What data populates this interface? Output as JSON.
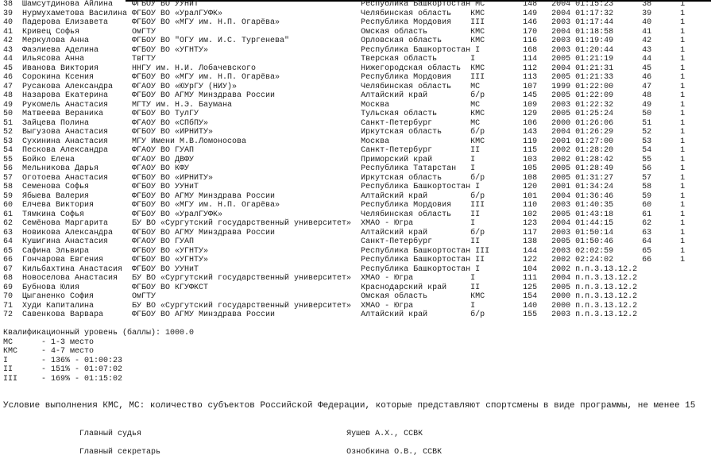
{
  "table": {
    "columns": [
      "№",
      "Фамилия Имя",
      "Организация",
      "Регион",
      "Разряд",
      "Номер",
      "Год",
      "Результат",
      "Место",
      "Очки"
    ],
    "rows": [
      {
        "num": "38",
        "name": "Шамсутдинова Айлина",
        "org": "ФГБОУ ВО УУНиТ",
        "region": "Республика Башкортостан",
        "rank": "МС",
        "bib": "148",
        "year": "2004",
        "result": "01:15:23",
        "place": "38",
        "points": "1"
      },
      {
        "num": "39",
        "name": "Нурмухаметова Василина",
        "org": "ФГБОУ ВО «УралГУФК»",
        "region": "Челябинская область",
        "rank": "КМС",
        "bib": "149",
        "year": "2004",
        "result": "01:17:32",
        "place": "39",
        "points": "1"
      },
      {
        "num": "40",
        "name": "Падерова Елизавета",
        "org": "ФГБОУ ВО «МГУ им. Н.П. Огарёва»",
        "region": "Республика Мордовия",
        "rank": "III",
        "bib": "146",
        "year": "2003",
        "result": "01:17:44",
        "place": "40",
        "points": "1"
      },
      {
        "num": "41",
        "name": "Кривец Софья",
        "org": "ОмГТУ",
        "region": "Омская область",
        "rank": "КМС",
        "bib": "170",
        "year": "2004",
        "result": "01:18:58",
        "place": "41",
        "points": "1"
      },
      {
        "num": "42",
        "name": "Меркулова Анна",
        "org": "ФГБОУ ВО \"ОГУ им. И.С. Тургенева\"",
        "region": "Орловская область",
        "rank": "КМС",
        "bib": "116",
        "year": "2003",
        "result": "01:19:49",
        "place": "42",
        "points": "1"
      },
      {
        "num": "43",
        "name": "Фаэлиева Аделина",
        "org": "ФГБОУ ВО «УГНТУ»",
        "region": "Республика Башкортостан",
        "rank": "I",
        "bib": "168",
        "year": "2003",
        "result": "01:20:44",
        "place": "43",
        "points": "1"
      },
      {
        "num": "44",
        "name": "Ильясова Анна",
        "org": "ТвГТУ",
        "region": "Тверская область",
        "rank": "I",
        "bib": "114",
        "year": "2005",
        "result": "01:21:19",
        "place": "44",
        "points": "1"
      },
      {
        "num": "45",
        "name": "Иванова Виктория",
        "org": "ННГУ им. Н.И. Лобачевского",
        "region": "Нижегородская область",
        "rank": "КМС",
        "bib": "112",
        "year": "2004",
        "result": "01:21:31",
        "place": "45",
        "points": "1"
      },
      {
        "num": "46",
        "name": "Сорокина Ксения",
        "org": "ФГБОУ ВО «МГУ им. Н.П. Огарёва»",
        "region": "Республика Мордовия",
        "rank": "III",
        "bib": "113",
        "year": "2005",
        "result": "01:21:33",
        "place": "46",
        "points": "1"
      },
      {
        "num": "47",
        "name": "Русакова Александра",
        "org": "ФГАОУ ВО «ЮУрГУ (НИУ)»",
        "region": "Челябинская область",
        "rank": "МС",
        "bib": "107",
        "year": "1999",
        "result": "01:22:00",
        "place": "47",
        "points": "1"
      },
      {
        "num": "48",
        "name": "Назарова Екатерина",
        "org": "ФГБОУ ВО АГМУ Минздрава России",
        "region": "Алтайский край",
        "rank": "б/р",
        "bib": "145",
        "year": "2005",
        "result": "01:22:09",
        "place": "48",
        "points": "1"
      },
      {
        "num": "49",
        "name": "Рукомель Анастасия",
        "org": "МГТУ им. Н.Э. Баумана",
        "region": "Москва",
        "rank": "МС",
        "bib": "109",
        "year": "2003",
        "result": "01:22:32",
        "place": "49",
        "points": "1"
      },
      {
        "num": "50",
        "name": "Матвеева Вераника",
        "org": "ФГБОУ ВО ТулГУ",
        "region": "Тульская область",
        "rank": "КМС",
        "bib": "129",
        "year": "2005",
        "result": "01:25:24",
        "place": "50",
        "points": "1"
      },
      {
        "num": "51",
        "name": "Зайцева Полина",
        "org": "ФГАОУ ВО «СПбПУ»",
        "region": "Санкт-Петербург",
        "rank": "МС",
        "bib": "106",
        "year": "2000",
        "result": "01:26:06",
        "place": "51",
        "points": "1"
      },
      {
        "num": "52",
        "name": "Выгузова Анастасия",
        "org": "ФГБОУ ВО «ИРНИТУ»",
        "region": "Иркутская область",
        "rank": "б/р",
        "bib": "143",
        "year": "2004",
        "result": "01:26:29",
        "place": "52",
        "points": "1"
      },
      {
        "num": "53",
        "name": "Сухинина Анастасия",
        "org": "МГУ Имени М.В.Ломоносова",
        "region": "Москва",
        "rank": "КМС",
        "bib": "119",
        "year": "2001",
        "result": "01:27:00",
        "place": "53",
        "points": "1"
      },
      {
        "num": "54",
        "name": "Пескова Александра",
        "org": "ФГАОУ ВО ГУАП",
        "region": "Санкт-Петербург",
        "rank": "II",
        "bib": "115",
        "year": "2002",
        "result": "01:28:20",
        "place": "54",
        "points": "1"
      },
      {
        "num": "55",
        "name": "Бойко Елена",
        "org": "ФГАОУ ВО ДВФУ",
        "region": "Приморский край",
        "rank": "I",
        "bib": "103",
        "year": "2002",
        "result": "01:28:42",
        "place": "55",
        "points": "1"
      },
      {
        "num": "56",
        "name": "Мельникова Дарья",
        "org": "ФГАОУ ВО КФУ",
        "region": "Республика Татарстан",
        "rank": "I",
        "bib": "105",
        "year": "2005",
        "result": "01:28:49",
        "place": "56",
        "points": "1"
      },
      {
        "num": "57",
        "name": "Оготоева Анастасия",
        "org": "ФГБОУ ВО «ИРНИТУ»",
        "region": "Иркутская область",
        "rank": "б/р",
        "bib": "108",
        "year": "2005",
        "result": "01:31:27",
        "place": "57",
        "points": "1"
      },
      {
        "num": "58",
        "name": "Семенова Софья",
        "org": "ФГБОУ ВО УУНиТ",
        "region": "Республика Башкортостан",
        "rank": "I",
        "bib": "120",
        "year": "2001",
        "result": "01:34:24",
        "place": "58",
        "points": "1"
      },
      {
        "num": "59",
        "name": "Ябыева Валерия",
        "org": "ФГБОУ ВО АГМУ Минздрава России",
        "region": "Алтайский край",
        "rank": "б/р",
        "bib": "101",
        "year": "2004",
        "result": "01:36:46",
        "place": "59",
        "points": "1"
      },
      {
        "num": "60",
        "name": "Елчева Виктория",
        "org": "ФГБОУ ВО «МГУ им. Н.П. Огарёва»",
        "region": "Республика Мордовия",
        "rank": "III",
        "bib": "110",
        "year": "2003",
        "result": "01:40:35",
        "place": "60",
        "points": "1"
      },
      {
        "num": "61",
        "name": "Тямкина Софья",
        "org": "ФГБОУ ВО «УралГУФК»",
        "region": "Челябинская область",
        "rank": "II",
        "bib": "102",
        "year": "2005",
        "result": "01:43:18",
        "place": "61",
        "points": "1"
      },
      {
        "num": "62",
        "name": "Семёнова Маргарита",
        "org": "БУ ВО «Сургутский государственный университет»",
        "region": "ХМАО - Югра",
        "rank": "I",
        "bib": "123",
        "year": "2004",
        "result": "01:44:15",
        "place": "62",
        "points": "1"
      },
      {
        "num": "63",
        "name": "Новикова Александра",
        "org": "ФГБОУ ВО АГМУ Минздрава России",
        "region": "Алтайский край",
        "rank": "б/р",
        "bib": "117",
        "year": "2003",
        "result": "01:50:14",
        "place": "63",
        "points": "1"
      },
      {
        "num": "64",
        "name": "Кушигина Анастасия",
        "org": "ФГАОУ ВО ГУАП",
        "region": "Санкт-Петербург",
        "rank": "II",
        "bib": "138",
        "year": "2005",
        "result": "01:50:46",
        "place": "64",
        "points": "1"
      },
      {
        "num": "65",
        "name": "Сафина Эльвира",
        "org": "ФГБОУ ВО «УГНТУ»",
        "region": "Республика Башкортостан",
        "rank": "III",
        "bib": "144",
        "year": "2003",
        "result": "02:02:59",
        "place": "65",
        "points": "1"
      },
      {
        "num": "66",
        "name": "Гончарова Евгения",
        "org": "ФГБОУ ВО «УГНТУ»",
        "region": "Республика Башкортостан",
        "rank": "II",
        "bib": "122",
        "year": "2002",
        "result": "02:24:02",
        "place": "66",
        "points": "1"
      },
      {
        "num": "67",
        "name": "Кильбахтина Анастасия",
        "org": "ФГБОУ ВО УУНиТ",
        "region": "Республика Башкортостан",
        "rank": "I",
        "bib": "104",
        "year": "2002",
        "result": "п.п.3.13.12.2",
        "place": "",
        "points": ""
      },
      {
        "num": "68",
        "name": "Новоселова Анастасия",
        "org": "БУ ВО «Сургутский государственный университет»",
        "region": "ХМАО - Югра",
        "rank": "I",
        "bib": "111",
        "year": "2004",
        "result": "п.п.3.13.12.2",
        "place": "",
        "points": ""
      },
      {
        "num": "69",
        "name": "Бубнова Юлия",
        "org": "ФГБОУ ВО КГУФКСТ",
        "region": "Краснодарский край",
        "rank": "II",
        "bib": "125",
        "year": "2005",
        "result": "п.п.3.13.12.2",
        "place": "",
        "points": ""
      },
      {
        "num": "70",
        "name": "Цыганенко София",
        "org": "ОмГТУ",
        "region": "Омская область",
        "rank": "КМС",
        "bib": "154",
        "year": "2000",
        "result": "п.п.3.13.12.2",
        "place": "",
        "points": ""
      },
      {
        "num": "71",
        "name": "Худи Капиталина",
        "org": "БУ ВО «Сургутский государственный университет»",
        "region": "ХМАО - Югра",
        "rank": "I",
        "bib": "140",
        "year": "2000",
        "result": "п.п.3.13.12.2",
        "place": "",
        "points": ""
      },
      {
        "num": "72",
        "name": "Савенкова Варвара",
        "org": "ФГБОУ ВО АГМУ Минздрава России",
        "region": "Алтайский край",
        "rank": "б/р",
        "bib": "155",
        "year": "2003",
        "result": "п.п.3.13.12.2",
        "place": "",
        "points": ""
      }
    ]
  },
  "qualification": {
    "title": "Квалификационный уровень (баллы):",
    "value": "1000.0",
    "levels": [
      {
        "label": "МС",
        "desc": "- 1-3 место"
      },
      {
        "label": "КМС",
        "desc": "- 4-7 место"
      },
      {
        "label": "I",
        "desc": "- 136% - 01:00:23"
      },
      {
        "label": "II",
        "desc": "- 151% - 01:07:02"
      },
      {
        "label": "III",
        "desc": "- 169% - 01:15:02"
      }
    ]
  },
  "condition": "Условие выполнения КМС, МС: количество субъектов Российской Федерации, которые представляют спортсмены в виде программы, не менее 15",
  "signatures": [
    {
      "role": "Главный судья",
      "name": "Яушев А.Х., ССВК"
    },
    {
      "role": "Главный секретарь",
      "name": "Ознобкина О.В., ССВК"
    }
  ]
}
